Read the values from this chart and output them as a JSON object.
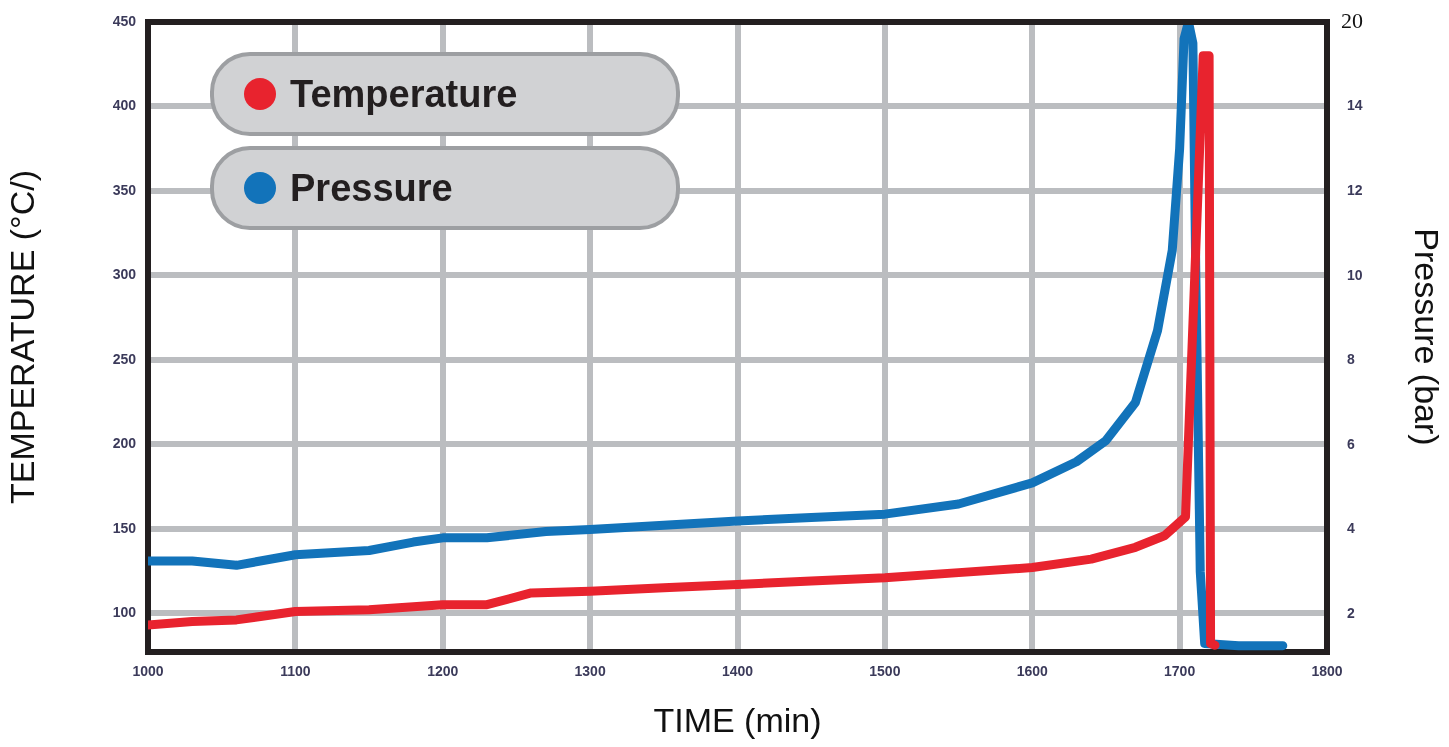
{
  "chart_data": {
    "type": "line",
    "xlabel": "TIME (min)",
    "ylabel": "TEMPERATURE (°C/)",
    "y2label": "Pressure (bar)",
    "xlim": [
      1000,
      1800
    ],
    "xticks": [
      1000,
      1100,
      1200,
      1300,
      1400,
      1500,
      1600,
      1700,
      1800
    ],
    "ylim": [
      77,
      450
    ],
    "yticks": [
      100,
      150,
      200,
      250,
      300,
      350,
      400,
      450
    ],
    "y2lim": [
      1.1,
      16
    ],
    "y2ticks": [
      2,
      4,
      6,
      8,
      10,
      12,
      14
    ],
    "annotations": [
      "20"
    ],
    "grid": true,
    "legend": "top left",
    "marker": "none",
    "line_style": "solid",
    "series": [
      {
        "name": "Temperature",
        "color": "#e8232e",
        "x": [
          1000,
          1030,
          1060,
          1100,
          1150,
          1200,
          1230,
          1260,
          1300,
          1350,
          1400,
          1450,
          1500,
          1550,
          1600,
          1640,
          1670,
          1690,
          1704,
          1716,
          1720,
          1721,
          1724
        ],
        "values": [
          93,
          95,
          96,
          101,
          102,
          105,
          105,
          112,
          113,
          115,
          117,
          119,
          121,
          124,
          127,
          132,
          139,
          146,
          157,
          430,
          430,
          82,
          81
        ]
      },
      {
        "name": "Pressure",
        "color": "#1273ba",
        "axis": "y2",
        "x": [
          1000,
          1030,
          1060,
          1100,
          1150,
          1180,
          1200,
          1230,
          1270,
          1300,
          1350,
          1400,
          1450,
          1500,
          1550,
          1600,
          1630,
          1650,
          1670,
          1685,
          1695,
          1700,
          1703,
          1706,
          1709,
          1711,
          1714,
          1717,
          1740,
          1770
        ],
        "values": [
          3.25,
          3.25,
          3.15,
          3.4,
          3.5,
          3.7,
          3.8,
          3.8,
          3.95,
          4.0,
          4.1,
          4.2,
          4.28,
          4.36,
          4.6,
          5.1,
          5.6,
          6.1,
          7.0,
          8.7,
          10.6,
          13.0,
          15.6,
          16.0,
          15.5,
          10,
          3,
          1.3,
          1.25,
          1.25
        ]
      }
    ]
  }
}
